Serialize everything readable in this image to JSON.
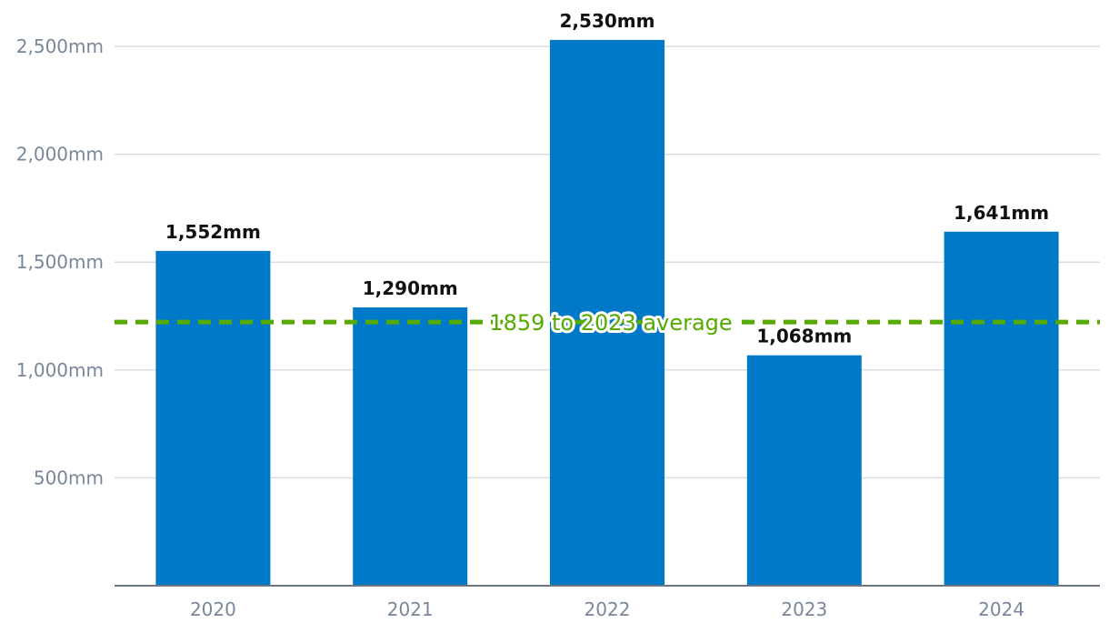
{
  "chart_data": {
    "type": "bar",
    "title": "",
    "xlabel": "",
    "ylabel": "",
    "categories": [
      "2020",
      "2021",
      "2022",
      "2023",
      "2024"
    ],
    "values": [
      1552,
      1290,
      2530,
      1068,
      1641
    ],
    "value_labels": [
      "1,552mm",
      "1,290mm",
      "2,530mm",
      "1,068mm",
      "1,641mm"
    ],
    "ylim": [
      0,
      2500
    ],
    "yticks": [
      500,
      1000,
      1500,
      2000,
      2500
    ],
    "ytick_labels": [
      "500mm",
      "1,000mm",
      "1,500mm",
      "2,000mm",
      "2,500mm"
    ],
    "grid": true,
    "bar_color": "#0079c8",
    "reference_line": {
      "label": "1859 to 2023 average",
      "value": 1222,
      "color": "#55aa00",
      "style": "dashed"
    }
  }
}
